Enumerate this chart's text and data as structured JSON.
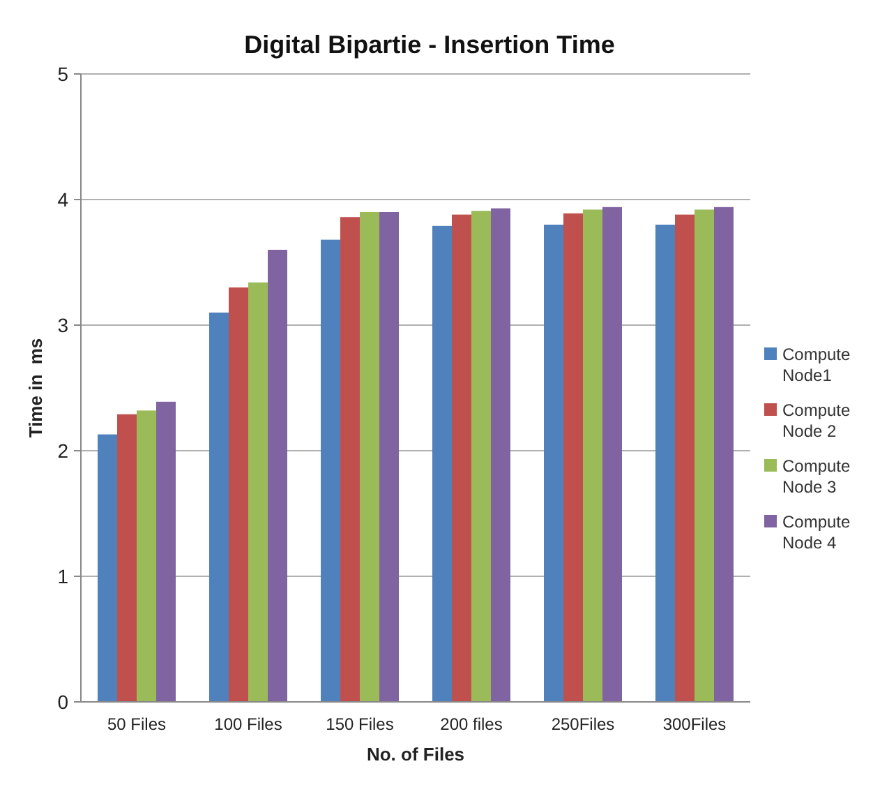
{
  "chart_data": {
    "type": "bar",
    "title": "Digital Bipartie - Insertion Time",
    "xlabel": "No. of Files",
    "ylabel": "Time in  ms",
    "categories": [
      "50 Files",
      "100 Files",
      "150 Files",
      "200 files",
      "250Files",
      "300Files"
    ],
    "series": [
      {
        "name": "Compute Node1",
        "color": "#4f81bd",
        "values": [
          2.13,
          3.1,
          3.68,
          3.79,
          3.8,
          3.8
        ]
      },
      {
        "name": "Compute Node 2",
        "color": "#c0504d",
        "values": [
          2.29,
          3.3,
          3.86,
          3.88,
          3.89,
          3.88
        ]
      },
      {
        "name": "Compute Node 3",
        "color": "#9bbb59",
        "values": [
          2.32,
          3.34,
          3.9,
          3.91,
          3.92,
          3.92
        ]
      },
      {
        "name": "Compute Node 4",
        "color": "#8064a2",
        "values": [
          2.39,
          3.6,
          3.9,
          3.93,
          3.94,
          3.94
        ]
      }
    ],
    "ylim": [
      0,
      5
    ],
    "yticks": [
      0,
      1,
      2,
      3,
      4,
      5
    ],
    "grid": "y",
    "legend": "right"
  }
}
